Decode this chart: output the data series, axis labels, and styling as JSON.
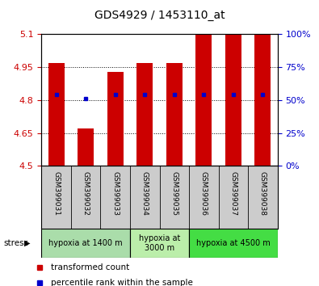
{
  "title": "GDS4929 / 1453110_at",
  "samples": [
    "GSM399031",
    "GSM399032",
    "GSM399033",
    "GSM399034",
    "GSM399035",
    "GSM399036",
    "GSM399037",
    "GSM399038"
  ],
  "bar_tops": [
    4.97,
    4.67,
    4.93,
    4.97,
    4.97,
    5.1,
    5.1,
    5.1
  ],
  "bar_bottom": 4.5,
  "blue_dot_y": [
    4.825,
    4.808,
    4.825,
    4.825,
    4.825,
    4.825,
    4.825,
    4.825
  ],
  "ylim": [
    4.5,
    5.1
  ],
  "yticks_left": [
    4.5,
    4.65,
    4.8,
    4.95,
    5.1
  ],
  "yticks_right_pct": [
    0,
    25,
    50,
    75,
    100
  ],
  "bar_color": "#cc0000",
  "dot_color": "#0000cc",
  "bar_width": 0.55,
  "group_colors": [
    "#aaddaa",
    "#bbeeaa",
    "#44dd44"
  ],
  "group_labels": [
    "hypoxia at 1400 m",
    "hypoxia at\n3000 m",
    "hypoxia at 4500 m"
  ],
  "group_starts": [
    0,
    3,
    5
  ],
  "group_ends": [
    3,
    5,
    8
  ],
  "legend_red": "transformed count",
  "legend_blue": "percentile rank within the sample",
  "tick_color_left": "#cc0000",
  "tick_color_right": "#0000cc",
  "sample_bg": "#cccccc",
  "plot_bg": "#ffffff"
}
